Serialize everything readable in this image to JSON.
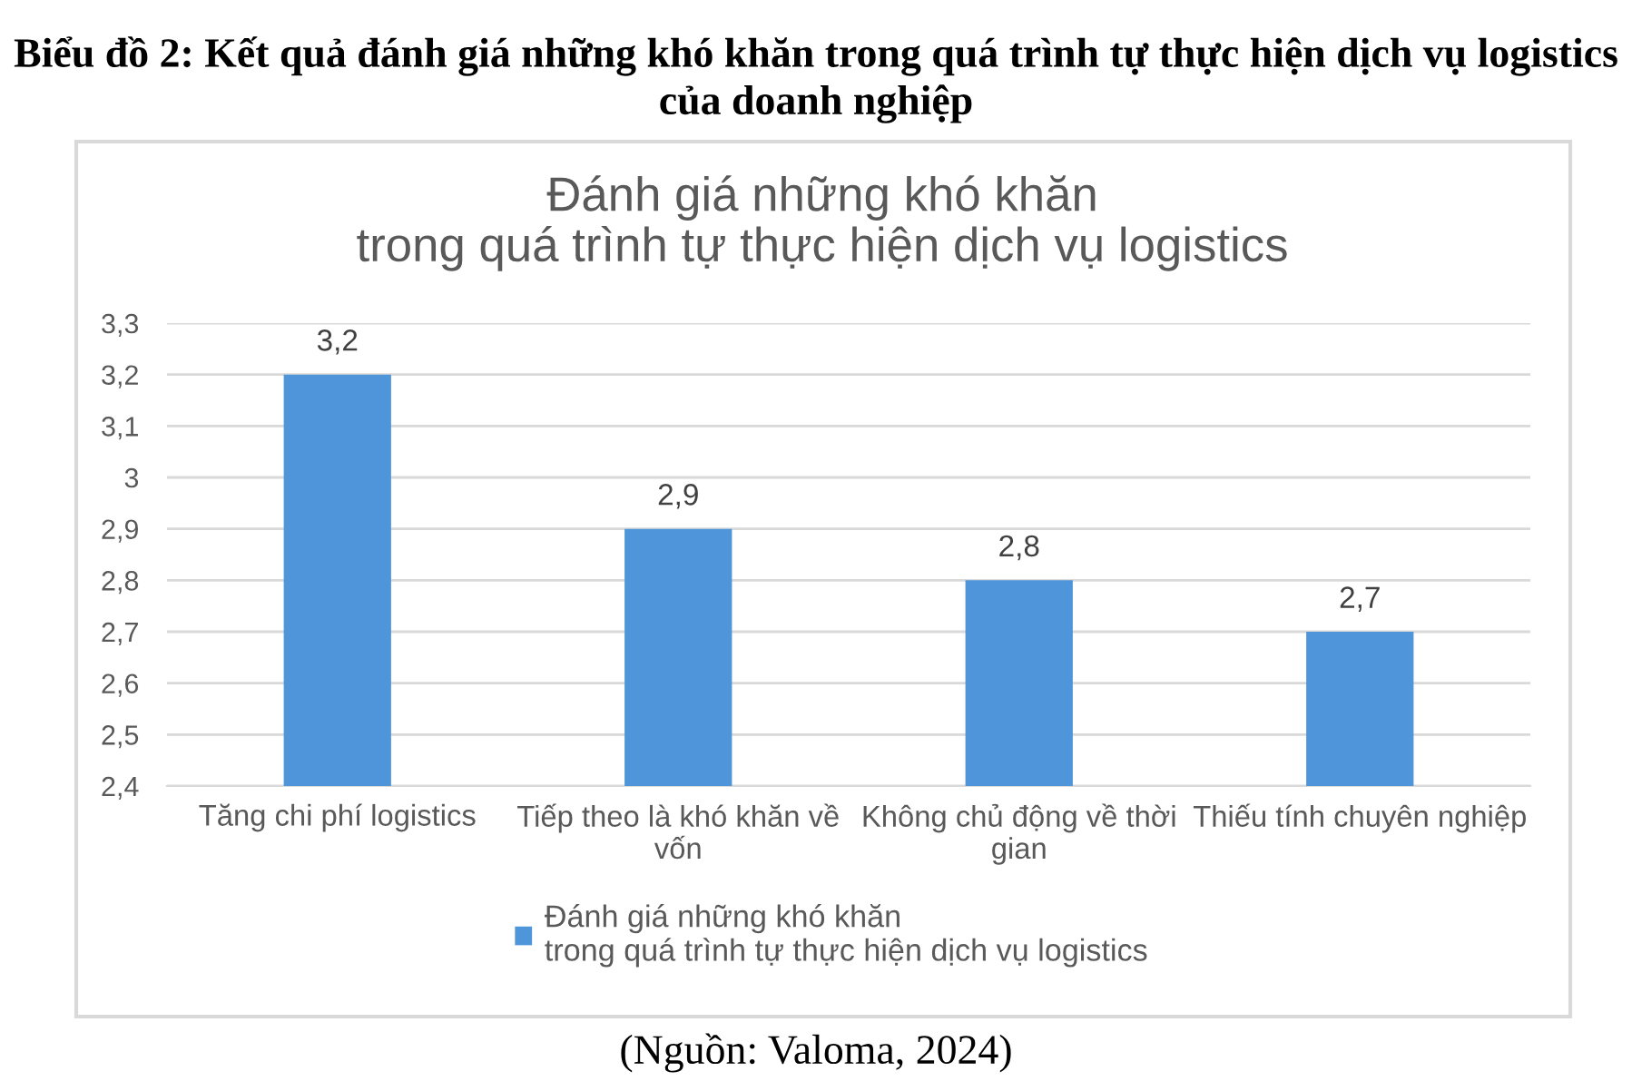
{
  "chart_data": {
    "type": "bar",
    "title": "Biểu đồ 2: Kết quả đánh giá những khó khăn trong quá trình tự thực hiện dịch vụ logistics của doanh nghiệp",
    "subtitle": "Đánh giá những khó khăn\ntrong quá trình tự thực hiện dịch vụ logistics",
    "categories": [
      "Tăng chi phí logistics",
      "Tiếp theo là khó khăn về vốn",
      "Không chủ động về thời gian",
      "Thiếu tính chuyên nghiệp"
    ],
    "series": [
      {
        "name": "Đánh giá những khó khăn\ntrong quá trình tự thực hiện dịch vụ logistics",
        "color": "#4e96d9",
        "values": [
          3.2,
          2.9,
          2.8,
          2.7
        ],
        "value_labels": [
          "3,2",
          "2,9",
          "2,8",
          "2,7"
        ]
      }
    ],
    "ylim": [
      2.4,
      3.3
    ],
    "yticks": [
      {
        "value": 2.4,
        "label": "2,4"
      },
      {
        "value": 2.5,
        "label": "2,5"
      },
      {
        "value": 2.6,
        "label": "2,6"
      },
      {
        "value": 2.7,
        "label": "2,7"
      },
      {
        "value": 2.8,
        "label": "2,8"
      },
      {
        "value": 2.9,
        "label": "2,9"
      },
      {
        "value": 3,
        "label": "3"
      },
      {
        "value": 3.1,
        "label": "3,1"
      },
      {
        "value": 3.2,
        "label": "3,2"
      },
      {
        "value": 3.3,
        "label": "3,3"
      }
    ],
    "grid": "y",
    "legend": "bottom",
    "annotations": [
      "(Nguồn: Valoma, 2024)"
    ]
  }
}
